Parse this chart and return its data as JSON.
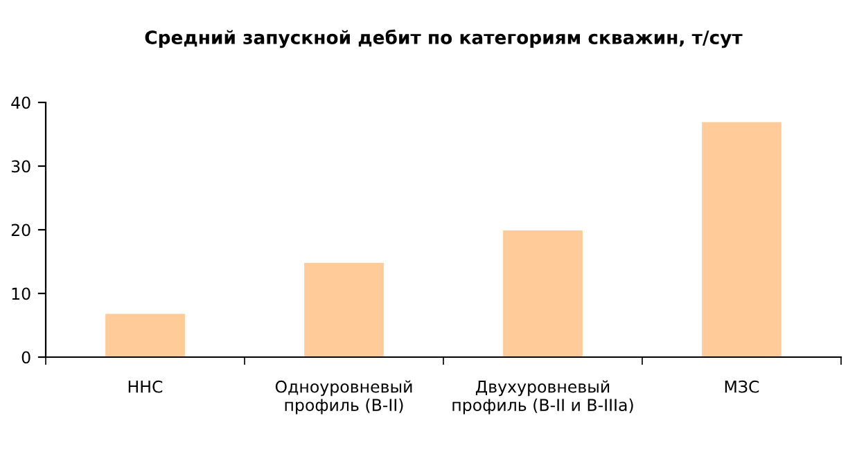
{
  "chart_data": {
    "type": "bar",
    "title": "Средний запускной дебит по категориям скважин, т/сут",
    "categories": [
      "ННС",
      "Одноуровневый\nпрофиль (В-II)",
      "Двухуровневый\nпрофиль (В-II и В-IIIa)",
      "МЗС"
    ],
    "values": [
      6.8,
      14.8,
      19.9,
      36.9
    ],
    "color": "#ffcc99",
    "ylim": [
      0,
      40
    ],
    "yticks": [
      0,
      10,
      20,
      30,
      40
    ],
    "grid": false,
    "legend": false
  }
}
